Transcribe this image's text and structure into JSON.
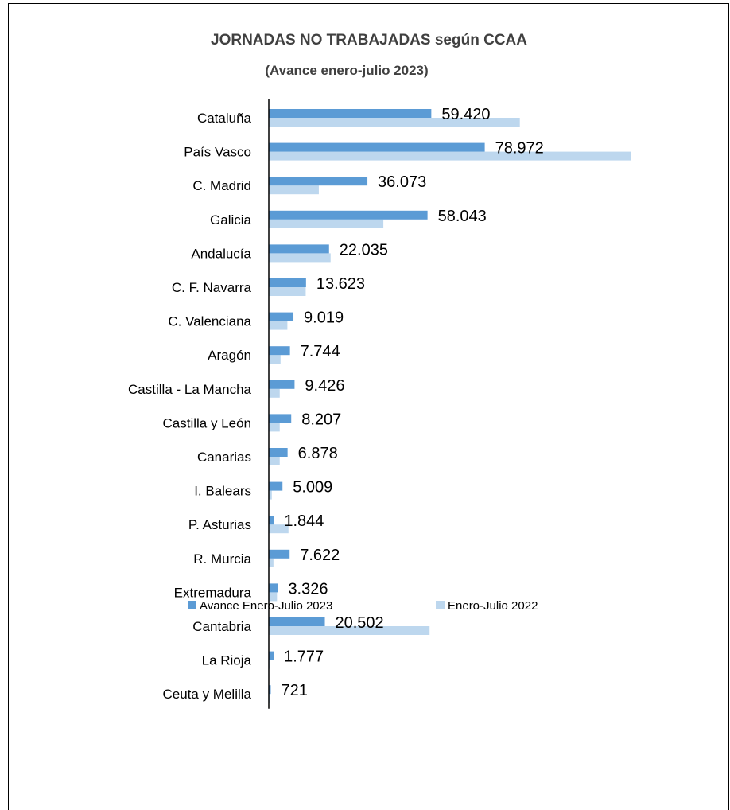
{
  "colors": {
    "series_2023": "#5b9bd5",
    "series_2022": "#bdd7ee",
    "axis": "#000000"
  },
  "chart_data": {
    "type": "bar",
    "orientation": "horizontal",
    "title": "JORNADAS NO TRABAJADAS según CCAA",
    "subtitle": "(Avance enero-julio 2023)",
    "categories": [
      "Cataluña",
      "País Vasco",
      "C. Madrid",
      "Galicia",
      "Andalucía",
      "C. F. Navarra",
      "C. Valenciana",
      "Aragón",
      "Castilla - La Mancha",
      "Castilla y León",
      "Canarias",
      "I. Balears",
      "P. Asturias",
      "R. Murcia",
      "Extremadura",
      "Cantabria",
      "La Rioja",
      "Ceuta y Melilla"
    ],
    "series": [
      {
        "name": "Avance Enero-Julio 2023",
        "values": [
          59420,
          78972,
          36073,
          58043,
          22035,
          13623,
          9019,
          7744,
          9426,
          8207,
          6878,
          5009,
          1844,
          7622,
          3326,
          20502,
          1777,
          721
        ]
      },
      {
        "name": "Enero-Julio 2022",
        "values": [
          91800,
          132300,
          18300,
          41900,
          22600,
          13500,
          6800,
          4300,
          4000,
          4000,
          4000,
          1100,
          7200,
          1700,
          3000,
          58800,
          100,
          200
        ]
      }
    ],
    "data_labels": [
      "59.420",
      "78.972",
      "36.073",
      "58.043",
      "22.035",
      "13.623",
      "9.019",
      "7.744",
      "9.426",
      "8.207",
      "6.878",
      "5.009",
      "1.844",
      "7.622",
      "3.326",
      "20.502",
      "1.777",
      "721"
    ],
    "xlim": [
      0,
      132300
    ],
    "grid": false,
    "legend_position": "bottom"
  }
}
